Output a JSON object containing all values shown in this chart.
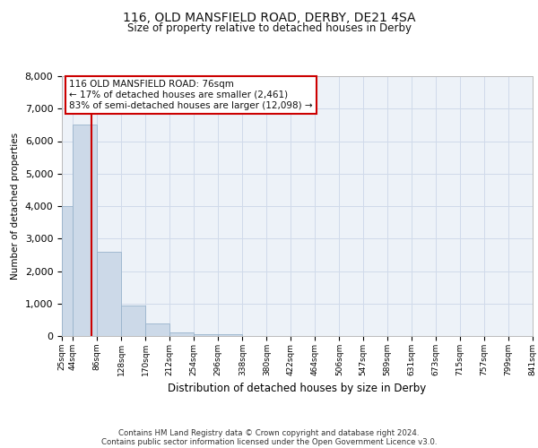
{
  "title_line1": "116, OLD MANSFIELD ROAD, DERBY, DE21 4SA",
  "title_line2": "Size of property relative to detached houses in Derby",
  "xlabel": "Distribution of detached houses by size in Derby",
  "ylabel": "Number of detached properties",
  "footnote1": "Contains HM Land Registry data © Crown copyright and database right 2024.",
  "footnote2": "Contains public sector information licensed under the Open Government Licence v3.0.",
  "annotation_line1": "116 OLD MANSFIELD ROAD: 76sqm",
  "annotation_line2": "← 17% of detached houses are smaller (2,461)",
  "annotation_line3": "83% of semi-detached houses are larger (12,098) →",
  "bar_edges": [
    25,
    44,
    86,
    128,
    170,
    212,
    254,
    296,
    338,
    380,
    422,
    464,
    506,
    547,
    589,
    631,
    673,
    715,
    757,
    799,
    841
  ],
  "bar_heights": [
    4000,
    6500,
    2600,
    950,
    390,
    120,
    50,
    50,
    0,
    0,
    0,
    0,
    0,
    0,
    0,
    0,
    0,
    0,
    0,
    0
  ],
  "bar_color": "#ccd9e8",
  "bar_edge_color": "#99b3cc",
  "grid_color": "#d0daea",
  "background_color": "#edf2f8",
  "red_line_x": 76,
  "annotation_box_color": "#ffffff",
  "annotation_box_edge": "#cc0000",
  "red_line_color": "#cc0000",
  "ylim": [
    0,
    8000
  ],
  "yticks": [
    0,
    1000,
    2000,
    3000,
    4000,
    5000,
    6000,
    7000,
    8000
  ],
  "x_tick_labels": [
    "25sqm",
    "44sqm",
    "86sqm",
    "128sqm",
    "170sqm",
    "212sqm",
    "254sqm",
    "296sqm",
    "338sqm",
    "380sqm",
    "422sqm",
    "464sqm",
    "506sqm",
    "547sqm",
    "589sqm",
    "631sqm",
    "673sqm",
    "715sqm",
    "757sqm",
    "799sqm",
    "841sqm"
  ]
}
